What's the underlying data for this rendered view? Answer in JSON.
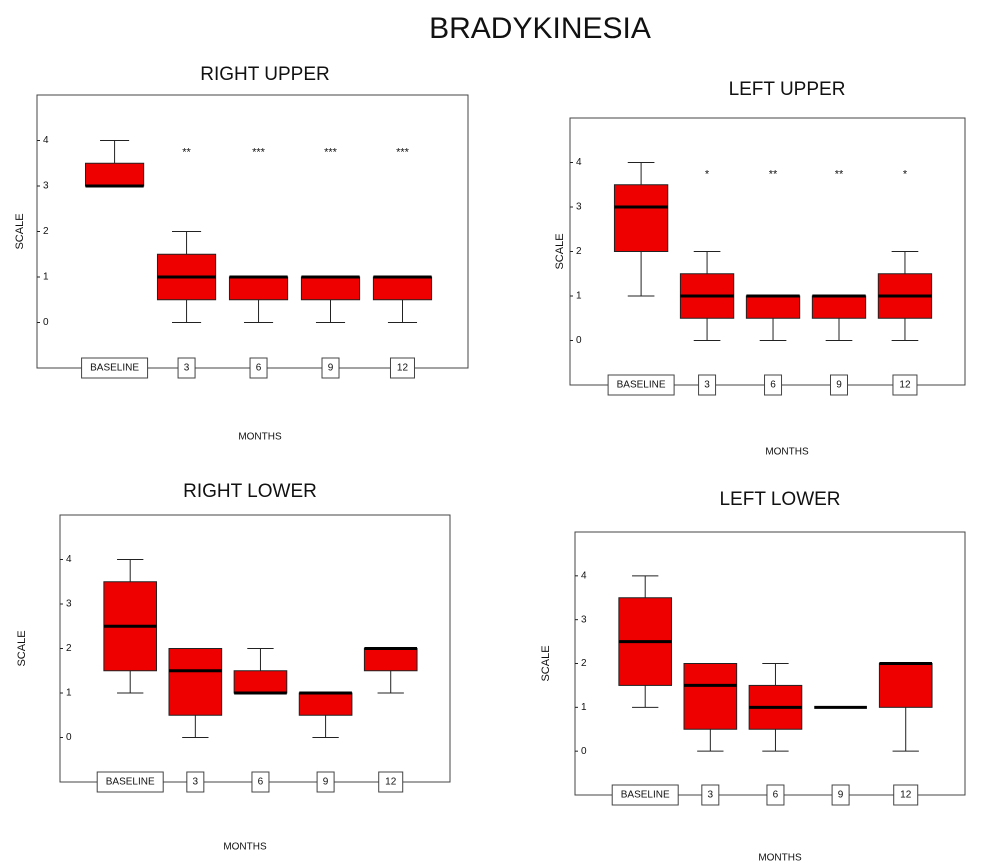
{
  "title": "BRADYKINESIA",
  "chart_data": [
    {
      "type": "box",
      "title": "RIGHT UPPER",
      "xlabel": "MONTHS",
      "ylabel": "SCALE",
      "color": "#ee0000",
      "categories": [
        "BASELINE",
        "3",
        "6",
        "9",
        "12"
      ],
      "boxes": [
        {
          "min": 3,
          "q1": 3,
          "median": 3,
          "q3": 3.5,
          "max": 4
        },
        {
          "min": 0,
          "q1": 0.5,
          "median": 1,
          "q3": 1.5,
          "max": 2
        },
        {
          "min": 0,
          "q1": 0.5,
          "median": 1,
          "q3": 1,
          "max": 1
        },
        {
          "min": 0,
          "q1": 0.5,
          "median": 1,
          "q3": 1,
          "max": 1
        },
        {
          "min": 0,
          "q1": 0.5,
          "median": 1,
          "q3": 1,
          "max": 1
        }
      ],
      "annotations": [
        null,
        "**",
        "***",
        "***",
        "***"
      ],
      "ylim": [
        -1,
        5
      ],
      "yticks": [
        0,
        1,
        2,
        3,
        4
      ]
    },
    {
      "type": "box",
      "title": "LEFT UPPER",
      "xlabel": "MONTHS",
      "ylabel": "SCALE",
      "color": "#ee0000",
      "categories": [
        "BASELINE",
        "3",
        "6",
        "9",
        "12"
      ],
      "boxes": [
        {
          "min": 1,
          "q1": 2,
          "median": 3,
          "q3": 3.5,
          "max": 4
        },
        {
          "min": 0,
          "q1": 0.5,
          "median": 1,
          "q3": 1.5,
          "max": 2
        },
        {
          "min": 0,
          "q1": 0.5,
          "median": 1,
          "q3": 1,
          "max": 1
        },
        {
          "min": 0,
          "q1": 0.5,
          "median": 1,
          "q3": 1,
          "max": 1
        },
        {
          "min": 0,
          "q1": 0.5,
          "median": 1,
          "q3": 1.5,
          "max": 2
        }
      ],
      "annotations": [
        null,
        "*",
        "**",
        "**",
        "*"
      ],
      "ylim": [
        -1,
        5
      ],
      "yticks": [
        0,
        1,
        2,
        3,
        4
      ]
    },
    {
      "type": "box",
      "title": "RIGHT LOWER",
      "xlabel": "MONTHS",
      "ylabel": "SCALE",
      "color": "#ee0000",
      "categories": [
        "BASELINE",
        "3",
        "6",
        "9",
        "12"
      ],
      "boxes": [
        {
          "min": 1,
          "q1": 1.5,
          "median": 2.5,
          "q3": 3.5,
          "max": 4
        },
        {
          "min": 0,
          "q1": 0.5,
          "median": 1.5,
          "q3": 2,
          "max": 2
        },
        {
          "min": 1,
          "q1": 1,
          "median": 1,
          "q3": 1.5,
          "max": 2
        },
        {
          "min": 0,
          "q1": 0.5,
          "median": 1,
          "q3": 1,
          "max": 1
        },
        {
          "min": 1,
          "q1": 1.5,
          "median": 2,
          "q3": 2,
          "max": 2
        }
      ],
      "ylim": [
        -1,
        5
      ],
      "yticks": [
        0,
        1,
        2,
        3,
        4
      ]
    },
    {
      "type": "box",
      "title": "LEFT LOWER",
      "xlabel": "MONTHS",
      "ylabel": "SCALE",
      "color": "#ee0000",
      "categories": [
        "BASELINE",
        "3",
        "6",
        "9",
        "12"
      ],
      "boxes": [
        {
          "min": 1,
          "q1": 1.5,
          "median": 2.5,
          "q3": 3.5,
          "max": 4
        },
        {
          "min": 0,
          "q1": 0.5,
          "median": 1.5,
          "q3": 2,
          "max": 2
        },
        {
          "min": 0,
          "q1": 0.5,
          "median": 1,
          "q3": 1.5,
          "max": 2
        },
        {
          "min": 1,
          "q1": 1,
          "median": 1,
          "q3": 1,
          "max": 1
        },
        {
          "min": 0,
          "q1": 1,
          "median": 2,
          "q3": 2,
          "max": 2
        }
      ],
      "ylim": [
        -1,
        5
      ],
      "yticks": [
        0,
        1,
        2,
        3,
        4
      ]
    }
  ]
}
